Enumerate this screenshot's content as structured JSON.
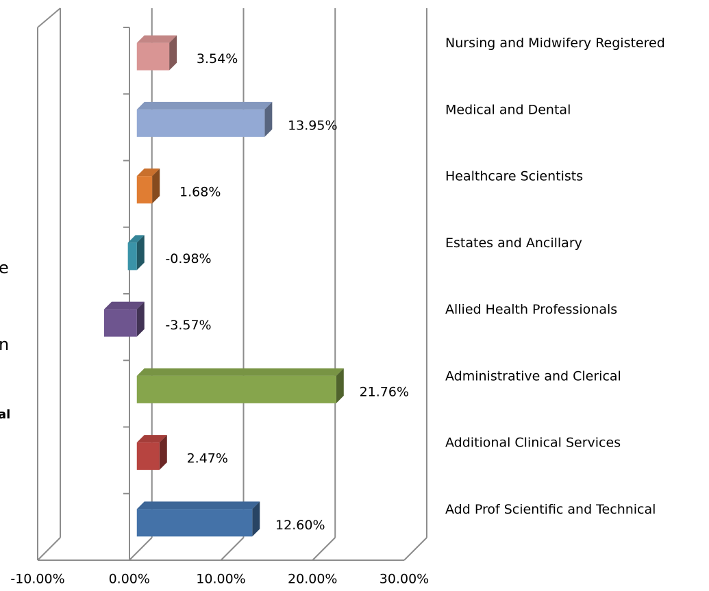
{
  "chart_data": {
    "type": "bar3d",
    "categories": [
      "Add Prof Scientific and Technical",
      "Additional Clinical Services",
      "Administrative and Clerical",
      "Allied Health Professionals",
      "Estates and Ancillary",
      "Healthcare Scientists",
      "Medical and Dental",
      "Nursing and Midwifery Registered"
    ],
    "values": [
      12.6,
      2.47,
      21.76,
      -3.57,
      -0.98,
      1.68,
      13.95,
      3.54
    ],
    "value_labels": [
      "12.60%",
      "2.47%",
      "21.76%",
      "-3.57%",
      "-0.98%",
      "1.68%",
      "13.95%",
      "3.54%"
    ],
    "colors": [
      "#4472a8",
      "#b74440",
      "#86a54c",
      "#6e558f",
      "#3a93a8",
      "#e07d33",
      "#93a9d4",
      "#d99594"
    ],
    "xlim": [
      -10,
      30
    ],
    "xticks": [
      {
        "value": -10,
        "label": "-10.00%"
      },
      {
        "value": 0,
        "label": "0.00%"
      },
      {
        "value": 10,
        "label": "10.00%"
      },
      {
        "value": 20,
        "label": "20.00%"
      },
      {
        "value": 30,
        "label": "30.00%"
      }
    ],
    "grid": true,
    "cropped_texts": [
      "e",
      "n",
      "al"
    ]
  }
}
